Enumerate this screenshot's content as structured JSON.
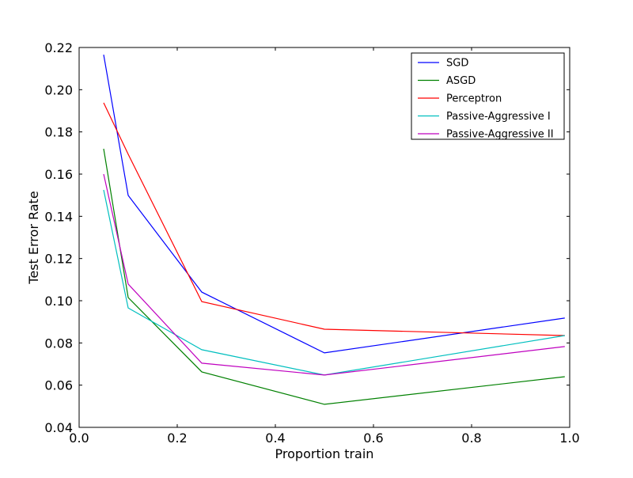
{
  "chart_data": {
    "type": "line",
    "title": "",
    "xlabel": "Proportion train",
    "ylabel": "Test Error Rate",
    "xlim": [
      0.0,
      1.0
    ],
    "ylim": [
      0.04,
      0.22
    ],
    "xticks": [
      "0.0",
      "0.2",
      "0.4",
      "0.6",
      "0.8",
      "1.0"
    ],
    "yticks": [
      "0.04",
      "0.06",
      "0.08",
      "0.10",
      "0.12",
      "0.14",
      "0.16",
      "0.18",
      "0.20",
      "0.22"
    ],
    "grid": false,
    "legend_position": "top-right",
    "x": [
      0.05,
      0.1,
      0.25,
      0.5,
      0.99
    ],
    "series": [
      {
        "name": "SGD",
        "color": "#0000ff",
        "values": [
          0.2166,
          0.1499,
          0.1041,
          0.0753,
          0.0918
        ]
      },
      {
        "name": "ASGD",
        "color": "#008000",
        "values": [
          0.172,
          0.1015,
          0.0663,
          0.0509,
          0.064
        ]
      },
      {
        "name": "Perceptron",
        "color": "#ff0000",
        "values": [
          0.1938,
          0.1694,
          0.0996,
          0.0865,
          0.0835
        ]
      },
      {
        "name": "Passive-Aggressive I",
        "color": "#00bfbf",
        "values": [
          0.1525,
          0.0966,
          0.0768,
          0.0648,
          0.0835
        ]
      },
      {
        "name": "Passive-Aggressive II",
        "color": "#bf00bf",
        "values": [
          0.16,
          0.1079,
          0.0704,
          0.0648,
          0.0783
        ]
      }
    ]
  }
}
